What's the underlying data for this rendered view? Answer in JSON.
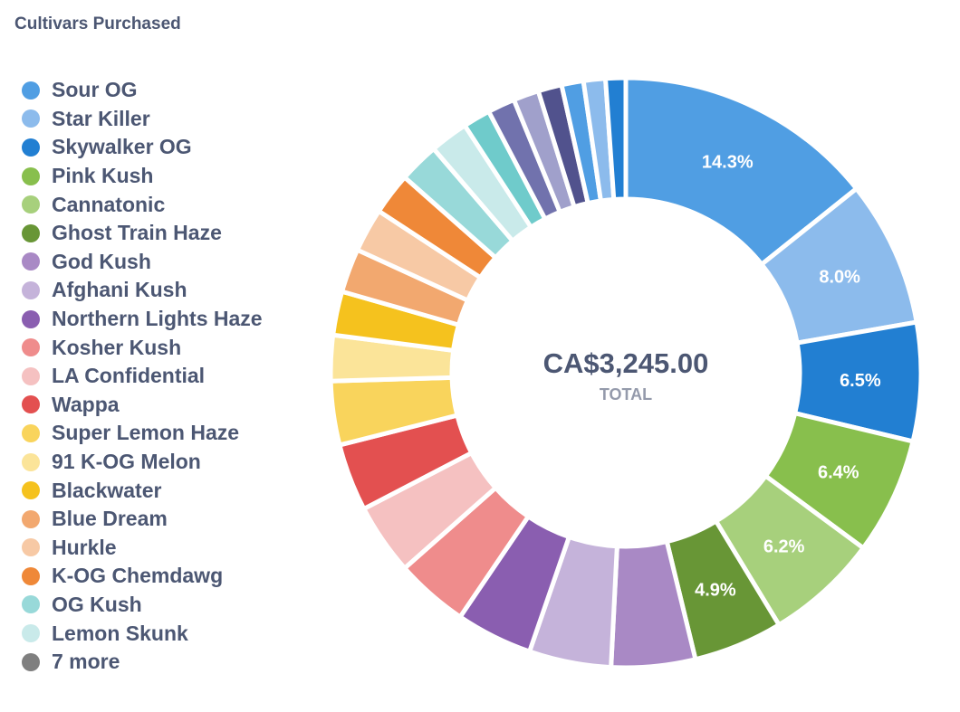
{
  "card": {
    "title": "Cultivars Purchased"
  },
  "chart_data": {
    "type": "pie",
    "variant": "donut",
    "title": "Cultivars Purchased",
    "total_value": "CA$3,245.00",
    "total_caption": "TOTAL",
    "legend_position": "left",
    "slices": [
      {
        "label": "Sour OG",
        "percent": 14.3,
        "color": "#509ee3",
        "show_label": true,
        "display": "14.3%"
      },
      {
        "label": "Star Killer",
        "percent": 8.0,
        "color": "#8cbbec",
        "show_label": true,
        "display": "8.0%"
      },
      {
        "label": "Skywalker OG",
        "percent": 6.5,
        "color": "#227fd2",
        "show_label": true,
        "display": "6.5%"
      },
      {
        "label": "Pink Kush",
        "percent": 6.4,
        "color": "#88bf4d",
        "show_label": true,
        "display": "6.4%"
      },
      {
        "label": "Cannatonic",
        "percent": 6.2,
        "color": "#a7d07c",
        "show_label": true,
        "display": "6.2%"
      },
      {
        "label": "Ghost Train Haze",
        "percent": 4.9,
        "color": "#689636",
        "show_label": true,
        "display": "4.9%"
      },
      {
        "label": "God Kush",
        "percent": 4.6,
        "color": "#a989c5",
        "show_label": false,
        "display": ""
      },
      {
        "label": "Afghani Kush",
        "percent": 4.5,
        "color": "#c5b3da",
        "show_label": false,
        "display": ""
      },
      {
        "label": "Northern Lights Haze",
        "percent": 4.2,
        "color": "#8a5eb0",
        "show_label": false,
        "display": ""
      },
      {
        "label": "Kosher Kush",
        "percent": 4.0,
        "color": "#ef8c8c",
        "show_label": false,
        "display": ""
      },
      {
        "label": "LA Confidential",
        "percent": 3.9,
        "color": "#f5c1c1",
        "show_label": false,
        "display": ""
      },
      {
        "label": "Wappa",
        "percent": 3.7,
        "color": "#e35050",
        "show_label": false,
        "display": ""
      },
      {
        "label": "Super Lemon Haze",
        "percent": 3.5,
        "color": "#f9d45c",
        "show_label": false,
        "display": ""
      },
      {
        "label": "91 K-OG Melon",
        "percent": 2.5,
        "color": "#fbe499",
        "show_label": false,
        "display": ""
      },
      {
        "label": "Blackwater",
        "percent": 2.4,
        "color": "#f5c21e",
        "show_label": false,
        "display": ""
      },
      {
        "label": "Blue Dream",
        "percent": 2.4,
        "color": "#f2a86f",
        "show_label": false,
        "display": ""
      },
      {
        "label": "Hurkle",
        "percent": 2.4,
        "color": "#f7c9a5",
        "show_label": false,
        "display": ""
      },
      {
        "label": "K-OG Chemdawg",
        "percent": 2.3,
        "color": "#ef8838",
        "show_label": false,
        "display": ""
      },
      {
        "label": "OG Kush",
        "percent": 2.2,
        "color": "#98d9d9",
        "show_label": false,
        "display": ""
      },
      {
        "label": "Lemon Skunk",
        "percent": 2.1,
        "color": "#c9eaea",
        "show_label": false,
        "display": ""
      },
      {
        "label": "7 more (1)",
        "percent": 1.5,
        "color": "#6fcbcb",
        "show_label": false,
        "display": "",
        "in_legend": false
      },
      {
        "label": "7 more (2)",
        "percent": 1.5,
        "color": "#7172ad",
        "show_label": false,
        "display": "",
        "in_legend": false
      },
      {
        "label": "7 more (3)",
        "percent": 1.4,
        "color": "#a0a0cb",
        "show_label": false,
        "display": "",
        "in_legend": false
      },
      {
        "label": "7 more (4)",
        "percent": 1.3,
        "color": "#51528d",
        "show_label": false,
        "display": "",
        "in_legend": false
      },
      {
        "label": "7 more (5)",
        "percent": 1.2,
        "color": "#509ee3",
        "show_label": false,
        "display": "",
        "in_legend": false
      },
      {
        "label": "7 more (6)",
        "percent": 1.2,
        "color": "#8cbbec",
        "show_label": false,
        "display": "",
        "in_legend": false
      },
      {
        "label": "7 more (7)",
        "percent": 1.1,
        "color": "#227fd2",
        "show_label": false,
        "display": "",
        "in_legend": false
      }
    ],
    "legend": [
      {
        "label": "Sour OG",
        "color": "#509ee3"
      },
      {
        "label": "Star Killer",
        "color": "#8cbbec"
      },
      {
        "label": "Skywalker OG",
        "color": "#227fd2"
      },
      {
        "label": "Pink Kush",
        "color": "#88bf4d"
      },
      {
        "label": "Cannatonic",
        "color": "#a7d07c"
      },
      {
        "label": "Ghost Train Haze",
        "color": "#689636"
      },
      {
        "label": "God Kush",
        "color": "#a989c5"
      },
      {
        "label": "Afghani Kush",
        "color": "#c5b3da"
      },
      {
        "label": "Northern Lights Haze",
        "color": "#8a5eb0"
      },
      {
        "label": "Kosher Kush",
        "color": "#ef8c8c"
      },
      {
        "label": "LA Confidential",
        "color": "#f5c1c1"
      },
      {
        "label": "Wappa",
        "color": "#e35050"
      },
      {
        "label": "Super Lemon Haze",
        "color": "#f9d45c"
      },
      {
        "label": "91 K-OG Melon",
        "color": "#fbe499"
      },
      {
        "label": "Blackwater",
        "color": "#f5c21e"
      },
      {
        "label": "Blue Dream",
        "color": "#f2a86f"
      },
      {
        "label": "Hurkle",
        "color": "#f7c9a5"
      },
      {
        "label": "K-OG Chemdawg",
        "color": "#ef8838"
      },
      {
        "label": "OG Kush",
        "color": "#98d9d9"
      },
      {
        "label": "Lemon Skunk",
        "color": "#c9eaea"
      },
      {
        "label": "7 more",
        "color": "#7f7f7f"
      }
    ]
  }
}
